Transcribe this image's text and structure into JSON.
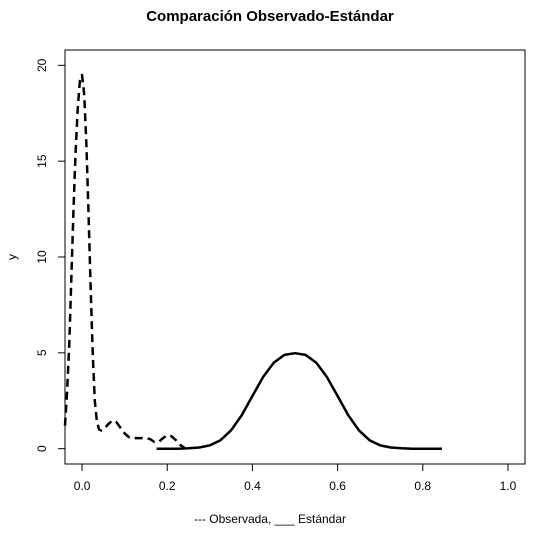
{
  "chart_data": {
    "type": "line",
    "title": "Comparación Observado-Estándar",
    "xlabel": "--- Observada, ___ Estándar",
    "ylabel": "y",
    "xlim": [
      -0.04,
      1.04
    ],
    "ylim": [
      -0.8,
      20.8
    ],
    "x_ticks": [
      "0.0",
      "0.2",
      "0.4",
      "0.6",
      "0.8",
      "1.0"
    ],
    "x_tick_values": [
      0.0,
      0.2,
      0.4,
      0.6,
      0.8,
      1.0
    ],
    "y_ticks": [
      "0",
      "5",
      "10",
      "15",
      "20"
    ],
    "y_tick_values": [
      0,
      5,
      10,
      15,
      20
    ],
    "grid": false,
    "series": [
      {
        "style": "dashed",
        "x": [
          -0.04,
          -0.035,
          -0.03,
          -0.025,
          -0.02,
          -0.015,
          -0.01,
          -0.005,
          0.0,
          0.005,
          0.01,
          0.015,
          0.02,
          0.025,
          0.03,
          0.035,
          0.04,
          0.045,
          0.05,
          0.055,
          0.06,
          0.07,
          0.08,
          0.09,
          0.1,
          0.11,
          0.12,
          0.13,
          0.14,
          0.15,
          0.16,
          0.17,
          0.18,
          0.19,
          0.2,
          0.21,
          0.22,
          0.23,
          0.24
        ],
        "y": [
          1.2,
          3.0,
          5.5,
          9.0,
          12.5,
          15.5,
          17.8,
          19.2,
          19.5,
          18.5,
          16.0,
          12.5,
          8.5,
          5.0,
          2.5,
          1.4,
          1.0,
          0.95,
          1.0,
          1.1,
          1.25,
          1.45,
          1.4,
          1.1,
          0.8,
          0.6,
          0.55,
          0.55,
          0.55,
          0.55,
          0.5,
          0.35,
          0.35,
          0.55,
          0.7,
          0.65,
          0.45,
          0.2,
          0.05
        ]
      },
      {
        "style": "solid",
        "x": [
          0.175,
          0.2,
          0.225,
          0.25,
          0.275,
          0.3,
          0.325,
          0.35,
          0.375,
          0.4,
          0.425,
          0.45,
          0.475,
          0.5,
          0.525,
          0.55,
          0.575,
          0.6,
          0.625,
          0.65,
          0.675,
          0.7,
          0.725,
          0.75,
          0.775,
          0.8,
          0.825,
          0.845
        ],
        "y": [
          0.0,
          0.0,
          0.0,
          0.02,
          0.06,
          0.17,
          0.44,
          0.96,
          1.75,
          2.75,
          3.74,
          4.48,
          4.89,
          4.98,
          4.89,
          4.48,
          3.74,
          2.75,
          1.75,
          0.96,
          0.44,
          0.17,
          0.06,
          0.02,
          0.0,
          0.0,
          0.0,
          0.0
        ]
      }
    ]
  }
}
